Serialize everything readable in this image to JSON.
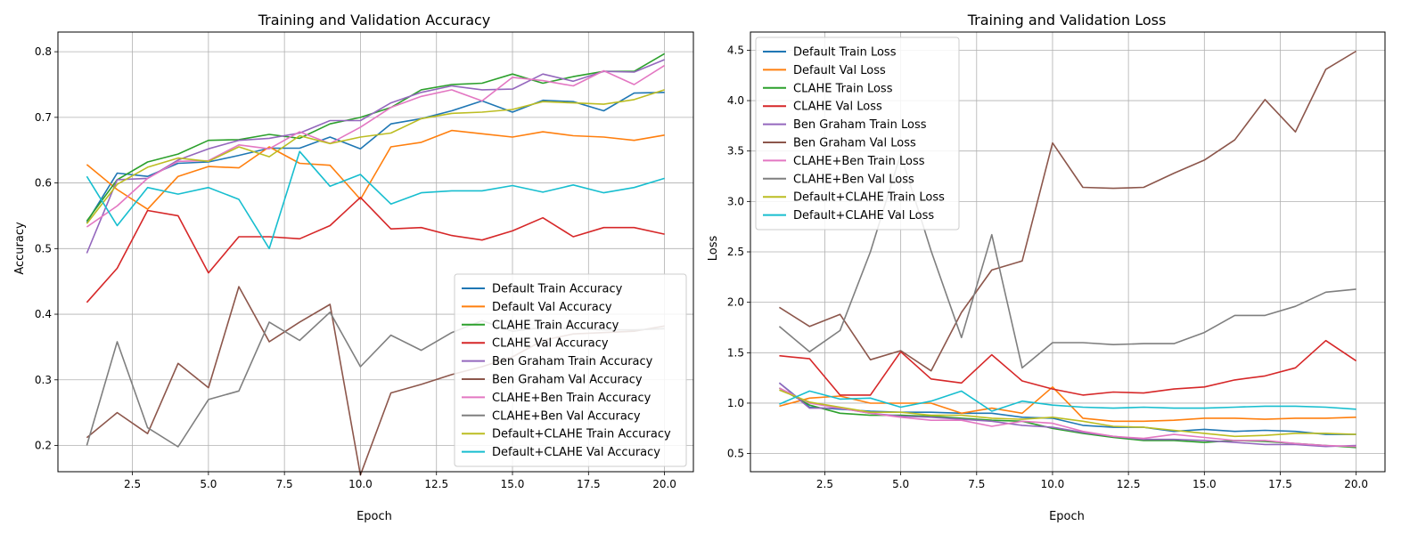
{
  "chart_data": [
    {
      "type": "line",
      "title": "Training and Validation Accuracy",
      "xlabel": "Epoch",
      "ylabel": "Accuracy",
      "xlim": [
        0.05,
        20.95
      ],
      "ylim": [
        0.16,
        0.83
      ],
      "xticks": [
        2.5,
        5.0,
        7.5,
        10.0,
        12.5,
        15.0,
        17.5,
        20.0
      ],
      "yticks": [
        0.2,
        0.3,
        0.4,
        0.5,
        0.6,
        0.7,
        0.8
      ],
      "grid": true,
      "legend_position": "lower-right",
      "x": [
        1,
        2,
        3,
        4,
        5,
        6,
        7,
        8,
        9,
        10,
        11,
        12,
        13,
        14,
        15,
        16,
        17,
        18,
        19,
        20
      ],
      "series": [
        {
          "name": "Default Train Accuracy",
          "color": "#1f77b4",
          "values": [
            0.54,
            0.615,
            0.61,
            0.63,
            0.632,
            0.642,
            0.653,
            0.653,
            0.67,
            0.652,
            0.69,
            0.698,
            0.71,
            0.725,
            0.708,
            0.726,
            0.724,
            0.71,
            0.737,
            0.738
          ]
        },
        {
          "name": "Default Val Accuracy",
          "color": "#ff7f0e",
          "values": [
            0.628,
            0.59,
            0.56,
            0.61,
            0.625,
            0.623,
            0.655,
            0.63,
            0.627,
            0.575,
            0.655,
            0.662,
            0.68,
            0.675,
            0.67,
            0.678,
            0.672,
            0.67,
            0.665,
            0.673
          ]
        },
        {
          "name": "CLAHE Train Accuracy",
          "color": "#2ca02c",
          "values": [
            0.542,
            0.605,
            0.632,
            0.644,
            0.665,
            0.666,
            0.674,
            0.668,
            0.69,
            0.7,
            0.715,
            0.742,
            0.75,
            0.752,
            0.766,
            0.752,
            0.762,
            0.77,
            0.77,
            0.797
          ]
        },
        {
          "name": "CLAHE Val Accuracy",
          "color": "#d62728",
          "values": [
            0.418,
            0.47,
            0.558,
            0.55,
            0.463,
            0.518,
            0.518,
            0.515,
            0.535,
            0.578,
            0.53,
            0.532,
            0.52,
            0.513,
            0.527,
            0.547,
            0.518,
            0.532,
            0.532,
            0.522
          ]
        },
        {
          "name": "Ben Graham Train Accuracy",
          "color": "#9467bd",
          "values": [
            0.493,
            0.605,
            0.607,
            0.635,
            0.652,
            0.665,
            0.668,
            0.676,
            0.695,
            0.695,
            0.722,
            0.738,
            0.748,
            0.742,
            0.743,
            0.766,
            0.755,
            0.77,
            0.769,
            0.788
          ]
        },
        {
          "name": "Ben Graham Val Accuracy",
          "color": "#8c564b",
          "values": [
            0.212,
            0.25,
            0.218,
            0.325,
            0.288,
            0.442,
            0.358,
            0.388,
            0.415,
            0.155,
            0.28,
            0.293,
            0.308,
            0.32,
            0.335,
            0.36,
            0.37,
            0.372,
            0.374,
            0.382
          ]
        },
        {
          "name": "CLAHE+Ben Train Accuracy",
          "color": "#e377c2",
          "values": [
            0.533,
            0.565,
            0.607,
            0.633,
            0.634,
            0.658,
            0.652,
            0.678,
            0.66,
            0.685,
            0.715,
            0.732,
            0.742,
            0.725,
            0.761,
            0.756,
            0.748,
            0.771,
            0.75,
            0.779
          ]
        },
        {
          "name": "CLAHE+Ben Val Accuracy",
          "color": "#7f7f7f",
          "values": [
            0.2,
            0.358,
            0.227,
            0.198,
            0.27,
            0.283,
            0.388,
            0.36,
            0.403,
            0.32,
            0.368,
            0.345,
            0.372,
            0.39,
            0.374,
            0.38,
            0.378,
            0.376,
            0.376,
            0.378
          ]
        },
        {
          "name": "Default+CLAHE Train Accuracy",
          "color": "#bcbd22",
          "values": [
            0.538,
            0.598,
            0.624,
            0.638,
            0.633,
            0.655,
            0.64,
            0.672,
            0.66,
            0.67,
            0.676,
            0.698,
            0.706,
            0.708,
            0.712,
            0.724,
            0.722,
            0.72,
            0.727,
            0.742
          ]
        },
        {
          "name": "Default+CLAHE Val Accuracy",
          "color": "#17becf",
          "values": [
            0.61,
            0.535,
            0.593,
            0.583,
            0.593,
            0.575,
            0.5,
            0.648,
            0.595,
            0.613,
            0.568,
            0.585,
            0.588,
            0.588,
            0.596,
            0.586,
            0.597,
            0.585,
            0.593,
            0.607
          ]
        }
      ]
    },
    {
      "type": "line",
      "title": "Training and Validation Loss",
      "xlabel": "Epoch",
      "ylabel": "Loss",
      "xlim": [
        0.05,
        20.95
      ],
      "ylim": [
        0.32,
        4.68
      ],
      "xticks": [
        2.5,
        5.0,
        7.5,
        10.0,
        12.5,
        15.0,
        17.5,
        20.0
      ],
      "yticks": [
        0.5,
        1.0,
        1.5,
        2.0,
        2.5,
        3.0,
        3.5,
        4.0,
        4.5
      ],
      "grid": true,
      "legend_position": "upper-left",
      "x": [
        1,
        2,
        3,
        4,
        5,
        6,
        7,
        8,
        9,
        10,
        11,
        12,
        13,
        14,
        15,
        16,
        17,
        18,
        19,
        20
      ],
      "series": [
        {
          "name": "Default Train Loss",
          "color": "#1f77b4",
          "values": [
            1.2,
            0.96,
            0.94,
            0.92,
            0.91,
            0.91,
            0.9,
            0.9,
            0.86,
            0.85,
            0.78,
            0.76,
            0.76,
            0.72,
            0.74,
            0.72,
            0.73,
            0.72,
            0.69,
            0.69
          ]
        },
        {
          "name": "Default Val Loss",
          "color": "#ff7f0e",
          "values": [
            0.97,
            1.05,
            1.07,
            1.0,
            1.0,
            1.0,
            0.9,
            0.95,
            0.9,
            1.16,
            0.85,
            0.82,
            0.82,
            0.83,
            0.85,
            0.85,
            0.84,
            0.85,
            0.85,
            0.86
          ]
        },
        {
          "name": "CLAHE Train Loss",
          "color": "#2ca02c",
          "values": [
            1.15,
            0.98,
            0.9,
            0.88,
            0.88,
            0.87,
            0.85,
            0.83,
            0.82,
            0.75,
            0.7,
            0.66,
            0.63,
            0.63,
            0.61,
            0.63,
            0.62,
            0.6,
            0.58,
            0.56
          ]
        },
        {
          "name": "CLAHE Val Loss",
          "color": "#d62728",
          "values": [
            1.47,
            1.44,
            1.08,
            1.08,
            1.51,
            1.24,
            1.2,
            1.48,
            1.22,
            1.14,
            1.08,
            1.11,
            1.1,
            1.14,
            1.16,
            1.23,
            1.27,
            1.35,
            1.62,
            1.42
          ]
        },
        {
          "name": "Ben Graham Train Loss",
          "color": "#9467bd",
          "values": [
            1.2,
            0.95,
            0.95,
            0.9,
            0.87,
            0.86,
            0.84,
            0.82,
            0.78,
            0.76,
            0.71,
            0.67,
            0.64,
            0.64,
            0.63,
            0.61,
            0.59,
            0.59,
            0.57,
            0.58
          ]
        },
        {
          "name": "Ben Graham Val Loss",
          "color": "#8c564b",
          "values": [
            1.95,
            1.76,
            1.88,
            1.43,
            1.52,
            1.32,
            1.9,
            2.32,
            2.41,
            3.58,
            3.14,
            3.13,
            3.14,
            3.28,
            3.41,
            3.61,
            4.01,
            3.69,
            4.31,
            4.49
          ]
        },
        {
          "name": "CLAHE+Ben Train Loss",
          "color": "#e377c2",
          "values": [
            1.15,
            1.0,
            0.95,
            0.9,
            0.86,
            0.83,
            0.83,
            0.77,
            0.82,
            0.8,
            0.72,
            0.67,
            0.65,
            0.69,
            0.66,
            0.63,
            0.63,
            0.6,
            0.58,
            0.57
          ]
        },
        {
          "name": "CLAHE+Ben Val Loss",
          "color": "#7f7f7f",
          "values": [
            1.76,
            1.51,
            1.72,
            2.5,
            3.47,
            2.51,
            1.65,
            2.67,
            1.35,
            1.6,
            1.6,
            1.58,
            1.59,
            1.59,
            1.7,
            1.87,
            1.87,
            1.96,
            2.1,
            2.13
          ]
        },
        {
          "name": "Default+CLAHE Train Loss",
          "color": "#bcbd22",
          "values": [
            1.13,
            1.01,
            0.96,
            0.91,
            0.91,
            0.88,
            0.88,
            0.85,
            0.84,
            0.86,
            0.82,
            0.77,
            0.76,
            0.73,
            0.7,
            0.67,
            0.68,
            0.7,
            0.7,
            0.69
          ]
        },
        {
          "name": "Default+CLAHE Val Loss",
          "color": "#17becf",
          "values": [
            0.99,
            1.12,
            1.04,
            1.05,
            0.96,
            1.02,
            1.12,
            0.92,
            1.02,
            0.98,
            0.96,
            0.95,
            0.96,
            0.95,
            0.95,
            0.96,
            0.97,
            0.97,
            0.96,
            0.94
          ]
        }
      ]
    }
  ]
}
